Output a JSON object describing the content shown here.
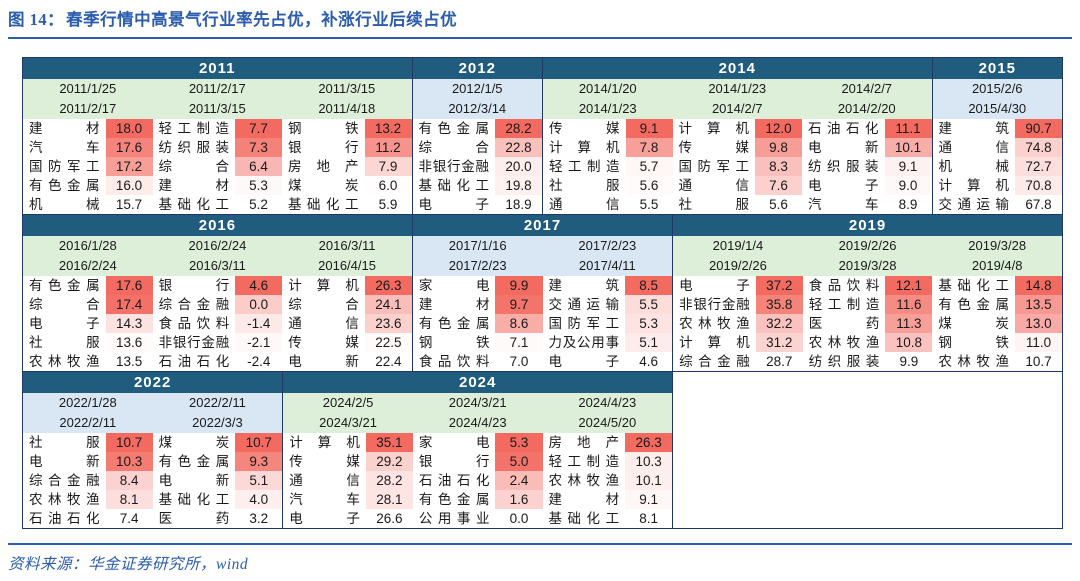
{
  "title": {
    "prefix": "图 14：",
    "text": "春季行情中高景气行业率先占优，补涨行业后续占优"
  },
  "footer": {
    "text": "资料来源：华金证券研究所，wind"
  },
  "colors": {
    "title_blue": "#2b5cad",
    "border_navy": "#1f3864",
    "year_band_teal": "#1f5c7d",
    "date_green": "#ddefd8",
    "date_blue": "#d9e7f4",
    "heat_red_max": "#f26a60"
  },
  "chart_data": {
    "type": "heatmap",
    "title": "春季行情中高景气行业率先占优，补涨行业后续占优",
    "note": "每个年份区块按时间区间列出涨幅前五的行业，数值单元格按列内数值大小由白到红着色",
    "rows": [
      {
        "blocks": [
          {
            "year": "2011",
            "span": 3,
            "date_style": "green",
            "columns": [
              {
                "start": "2011/1/25",
                "end": "2011/2/17",
                "entries": [
                  {
                    "name": "建材",
                    "value": 18.0
                  },
                  {
                    "name": "汽车",
                    "value": 17.6
                  },
                  {
                    "name": "国防军工",
                    "value": 17.2
                  },
                  {
                    "name": "有色金属",
                    "value": 16.0
                  },
                  {
                    "name": "机械",
                    "value": 15.7
                  }
                ]
              },
              {
                "start": "2011/2/17",
                "end": "2011/3/15",
                "entries": [
                  {
                    "name": "轻工制造",
                    "value": 7.7
                  },
                  {
                    "name": "纺织服装",
                    "value": 7.3
                  },
                  {
                    "name": "综合",
                    "value": 6.4
                  },
                  {
                    "name": "建材",
                    "value": 5.3
                  },
                  {
                    "name": "基础化工",
                    "value": 5.2
                  }
                ]
              },
              {
                "start": "2011/3/15",
                "end": "2011/4/18",
                "entries": [
                  {
                    "name": "钢铁",
                    "value": 13.2
                  },
                  {
                    "name": "银行",
                    "value": 11.2
                  },
                  {
                    "name": "房地产",
                    "value": 7.9
                  },
                  {
                    "name": "煤炭",
                    "value": 6.0
                  },
                  {
                    "name": "基础化工",
                    "value": 5.9
                  }
                ]
              }
            ]
          },
          {
            "year": "2012",
            "span": 1,
            "date_style": "blue",
            "columns": [
              {
                "start": "2012/1/5",
                "end": "2012/3/14",
                "entries": [
                  {
                    "name": "有色金属",
                    "value": 28.2
                  },
                  {
                    "name": "综合",
                    "value": 22.8
                  },
                  {
                    "name": "非银行金融",
                    "value": 20.0
                  },
                  {
                    "name": "基础化工",
                    "value": 19.8
                  },
                  {
                    "name": "电子",
                    "value": 18.9
                  }
                ]
              }
            ]
          },
          {
            "year": "2014",
            "span": 3,
            "date_style": "green",
            "columns": [
              {
                "start": "2014/1/20",
                "end": "2014/1/23",
                "entries": [
                  {
                    "name": "传媒",
                    "value": 9.1
                  },
                  {
                    "name": "计算机",
                    "value": 7.8
                  },
                  {
                    "name": "轻工制造",
                    "value": 5.7
                  },
                  {
                    "name": "社服",
                    "value": 5.6
                  },
                  {
                    "name": "通信",
                    "value": 5.5
                  }
                ]
              },
              {
                "start": "2014/1/23",
                "end": "2014/2/7",
                "entries": [
                  {
                    "name": "计算机",
                    "value": 12.0
                  },
                  {
                    "name": "传媒",
                    "value": 9.8
                  },
                  {
                    "name": "国防军工",
                    "value": 8.3
                  },
                  {
                    "name": "通信",
                    "value": 7.6
                  },
                  {
                    "name": "社服",
                    "value": 5.6
                  }
                ]
              },
              {
                "start": "2014/2/7",
                "end": "2014/2/20",
                "entries": [
                  {
                    "name": "石油石化",
                    "value": 11.1
                  },
                  {
                    "name": "电新",
                    "value": 10.1
                  },
                  {
                    "name": "纺织服装",
                    "value": 9.1
                  },
                  {
                    "name": "电子",
                    "value": 9.0
                  },
                  {
                    "name": "汽车",
                    "value": 8.9
                  }
                ]
              }
            ]
          },
          {
            "year": "2015",
            "span": 1,
            "date_style": "blue",
            "columns": [
              {
                "start": "2015/2/6",
                "end": "2015/4/30",
                "entries": [
                  {
                    "name": "建筑",
                    "value": 90.7
                  },
                  {
                    "name": "通信",
                    "value": 74.8
                  },
                  {
                    "name": "机械",
                    "value": 72.7
                  },
                  {
                    "name": "计算机",
                    "value": 70.8
                  },
                  {
                    "name": "交通运输",
                    "value": 67.8
                  }
                ]
              }
            ]
          }
        ]
      },
      {
        "blocks": [
          {
            "year": "2016",
            "span": 3,
            "date_style": "green",
            "columns": [
              {
                "start": "2016/1/28",
                "end": "2016/2/24",
                "entries": [
                  {
                    "name": "有色金属",
                    "value": 17.6
                  },
                  {
                    "name": "综合",
                    "value": 17.4
                  },
                  {
                    "name": "电子",
                    "value": 14.3
                  },
                  {
                    "name": "社服",
                    "value": 13.6
                  },
                  {
                    "name": "农林牧渔",
                    "value": 13.5
                  }
                ]
              },
              {
                "start": "2016/2/24",
                "end": "2016/3/11",
                "entries": [
                  {
                    "name": "银行",
                    "value": 4.6
                  },
                  {
                    "name": "综合金融",
                    "value": 0.0
                  },
                  {
                    "name": "食品饮料",
                    "value": -1.4
                  },
                  {
                    "name": "非银行金融",
                    "value": -2.1
                  },
                  {
                    "name": "石油石化",
                    "value": -2.4
                  }
                ]
              },
              {
                "start": "2016/3/11",
                "end": "2016/4/15",
                "entries": [
                  {
                    "name": "计算机",
                    "value": 26.3
                  },
                  {
                    "name": "综合",
                    "value": 24.1
                  },
                  {
                    "name": "通信",
                    "value": 23.6
                  },
                  {
                    "name": "传媒",
                    "value": 22.5
                  },
                  {
                    "name": "电新",
                    "value": 22.4
                  }
                ]
              }
            ]
          },
          {
            "year": "2017",
            "span": 2,
            "date_style": "blue",
            "columns": [
              {
                "start": "2017/1/16",
                "end": "2017/2/23",
                "entries": [
                  {
                    "name": "家电",
                    "value": 9.9
                  },
                  {
                    "name": "建材",
                    "value": 9.7
                  },
                  {
                    "name": "有色金属",
                    "value": 8.6
                  },
                  {
                    "name": "钢铁",
                    "value": 7.1
                  },
                  {
                    "name": "食品饮料",
                    "value": 7.0
                  }
                ]
              },
              {
                "start": "2017/2/23",
                "end": "2017/4/11",
                "entries": [
                  {
                    "name": "建筑",
                    "value": 8.5
                  },
                  {
                    "name": "交通运输",
                    "value": 5.5
                  },
                  {
                    "name": "国防军工",
                    "value": 5.3
                  },
                  {
                    "name": "力及公用事",
                    "value": 5.1
                  },
                  {
                    "name": "电子",
                    "value": 4.6
                  }
                ]
              }
            ]
          },
          {
            "year": "2019",
            "span": 3,
            "date_style": "green",
            "columns": [
              {
                "start": "2019/1/4",
                "end": "2019/2/26",
                "entries": [
                  {
                    "name": "电子",
                    "value": 37.2
                  },
                  {
                    "name": "非银行金融",
                    "value": 35.8
                  },
                  {
                    "name": "农林牧渔",
                    "value": 32.2
                  },
                  {
                    "name": "计算机",
                    "value": 31.2
                  },
                  {
                    "name": "综合金融",
                    "value": 28.7
                  }
                ]
              },
              {
                "start": "2019/2/26",
                "end": "2019/3/28",
                "entries": [
                  {
                    "name": "食品饮料",
                    "value": 12.1
                  },
                  {
                    "name": "轻工制造",
                    "value": 11.6
                  },
                  {
                    "name": "医药",
                    "value": 11.3
                  },
                  {
                    "name": "农林牧渔",
                    "value": 10.8
                  },
                  {
                    "name": "纺织服装",
                    "value": 9.9
                  }
                ]
              },
              {
                "start": "2019/3/28",
                "end": "2019/4/8",
                "entries": [
                  {
                    "name": "基础化工",
                    "value": 14.8
                  },
                  {
                    "name": "有色金属",
                    "value": 13.5
                  },
                  {
                    "name": "煤炭",
                    "value": 13.0
                  },
                  {
                    "name": "钢铁",
                    "value": 11.0
                  },
                  {
                    "name": "农林牧渔",
                    "value": 10.7
                  }
                ]
              }
            ]
          }
        ]
      },
      {
        "empty_span": 3,
        "blocks": [
          {
            "year": "2022",
            "span": 2,
            "date_style": "blue",
            "columns": [
              {
                "start": "2022/1/28",
                "end": "2022/2/11",
                "entries": [
                  {
                    "name": "社服",
                    "value": 10.7
                  },
                  {
                    "name": "电新",
                    "value": 10.3
                  },
                  {
                    "name": "综合金融",
                    "value": 8.4
                  },
                  {
                    "name": "农林牧渔",
                    "value": 8.1
                  },
                  {
                    "name": "石油石化",
                    "value": 7.4
                  }
                ]
              },
              {
                "start": "2022/2/11",
                "end": "2022/3/3",
                "entries": [
                  {
                    "name": "煤炭",
                    "value": 10.7
                  },
                  {
                    "name": "有色金属",
                    "value": 9.3
                  },
                  {
                    "name": "电新",
                    "value": 5.1
                  },
                  {
                    "name": "基础化工",
                    "value": 4.0
                  },
                  {
                    "name": "医药",
                    "value": 3.2
                  }
                ]
              }
            ]
          },
          {
            "year": "2024",
            "span": 3,
            "date_style": "green",
            "columns": [
              {
                "start": "2024/2/5",
                "end": "2024/3/21",
                "entries": [
                  {
                    "name": "计算机",
                    "value": 35.1
                  },
                  {
                    "name": "传媒",
                    "value": 29.2
                  },
                  {
                    "name": "通信",
                    "value": 28.2
                  },
                  {
                    "name": "汽车",
                    "value": 28.1
                  },
                  {
                    "name": "电子",
                    "value": 26.6
                  }
                ]
              },
              {
                "start": "2024/3/21",
                "end": "2024/4/23",
                "entries": [
                  {
                    "name": "家电",
                    "value": 5.3
                  },
                  {
                    "name": "银行",
                    "value": 5.0
                  },
                  {
                    "name": "石油石化",
                    "value": 2.4
                  },
                  {
                    "name": "有色金属",
                    "value": 1.6
                  },
                  {
                    "name": "公用事业",
                    "value": 0.0
                  }
                ]
              },
              {
                "start": "2024/4/23",
                "end": "2024/5/20",
                "entries": [
                  {
                    "name": "房地产",
                    "value": 26.3
                  },
                  {
                    "name": "轻工制造",
                    "value": 10.3
                  },
                  {
                    "name": "农林牧渔",
                    "value": 10.1
                  },
                  {
                    "name": "建材",
                    "value": 9.1
                  },
                  {
                    "name": "基础化工",
                    "value": 8.1
                  }
                ]
              }
            ]
          }
        ]
      }
    ]
  }
}
